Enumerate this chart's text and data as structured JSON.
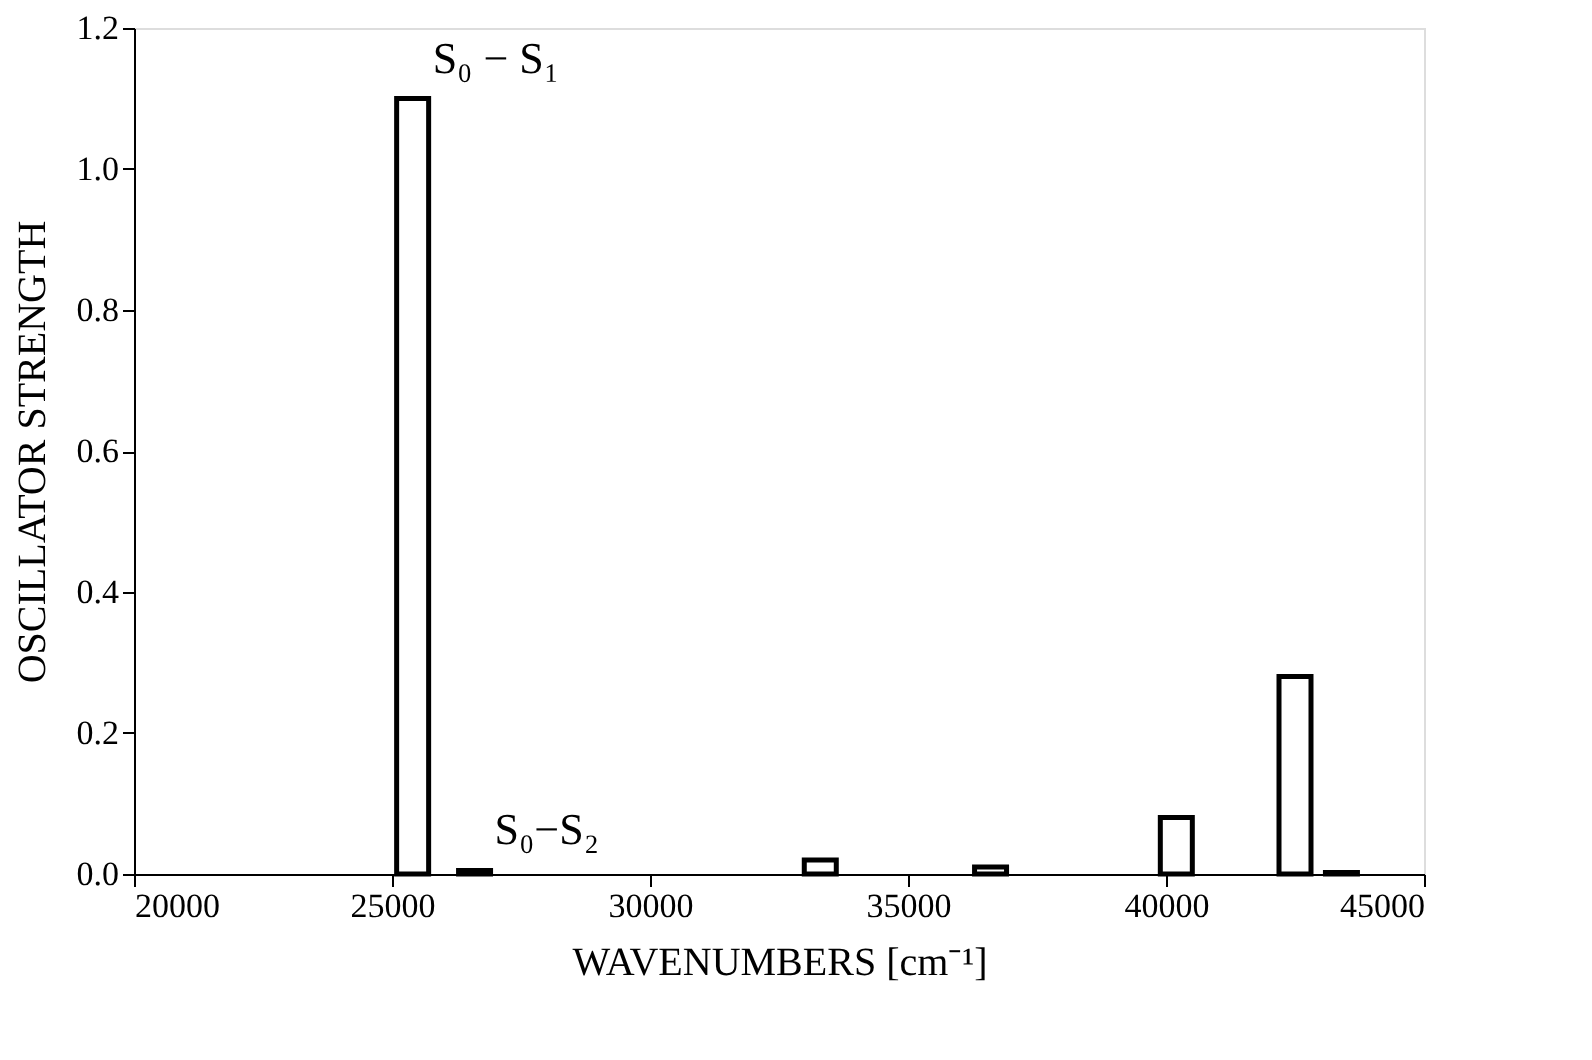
{
  "chart_data": {
    "type": "bar",
    "x": [
      25400,
      26600,
      33300,
      36600,
      40200,
      42500,
      43400
    ],
    "values": [
      1.1,
      0.005,
      0.02,
      0.01,
      0.08,
      0.28,
      0.002
    ],
    "color": "#000000",
    "xlabel": "WAVENUMBERS [cm⁻¹]",
    "ylabel": "OSCILLATOR STRENGTH",
    "xlim": [
      20000,
      45000
    ],
    "xticks": [
      20000,
      25000,
      30000,
      35000,
      40000,
      45000
    ],
    "ylim": [
      0,
      1.2
    ],
    "yticks": [
      {
        "value": 0,
        "label": "0.0"
      },
      0.2,
      0.4,
      0.6,
      0.8,
      {
        "value": 1,
        "label": "1.0"
      },
      1.2
    ],
    "annotations": [
      {
        "text": "S₀ − S₁",
        "x": 25400,
        "y": 1.1
      },
      {
        "text": "S₀−S₂",
        "x": 26600,
        "y": 0.005
      }
    ],
    "grid": false
  }
}
